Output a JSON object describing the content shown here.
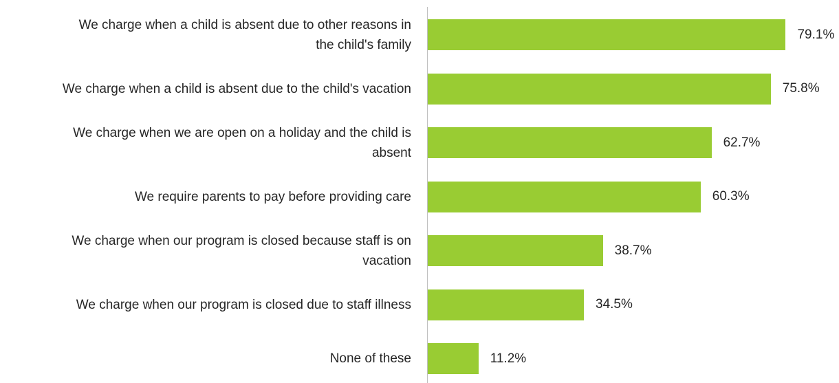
{
  "chart_data": {
    "type": "bar",
    "orientation": "horizontal",
    "categories": [
      "We charge when a child is absent due to other reasons in the child's family",
      "We charge when a child is absent due to the child's vacation",
      "We charge when we are open on a holiday and the child is absent",
      "We require parents to pay before providing care",
      "We charge when our program is closed because staff is on vacation",
      "We charge when our program is closed due to staff illness",
      "None of these"
    ],
    "category_lines": [
      [
        "We charge when a child is absent due to other reasons in",
        "the child's family"
      ],
      [
        "We charge when a child is absent due to the child's vacation"
      ],
      [
        "We charge when we are open on a holiday and the child is",
        "absent"
      ],
      [
        "We require parents to pay before providing care"
      ],
      [
        "We charge when our program is closed because staff is on",
        "vacation"
      ],
      [
        "We charge when our program is closed due to staff illness"
      ],
      [
        "None of these"
      ]
    ],
    "values": [
      79.1,
      75.8,
      62.7,
      60.3,
      38.7,
      34.5,
      11.2
    ],
    "value_labels": [
      "79.1%",
      "75.8%",
      "62.7%",
      "60.3%",
      "38.7%",
      "34.5%",
      "11.2%"
    ],
    "xlim": [
      0,
      100
    ],
    "unit": "%",
    "title": "",
    "xlabel": "",
    "ylabel": "",
    "grid": false,
    "legend": "none",
    "bar_color": "#99cc33"
  }
}
